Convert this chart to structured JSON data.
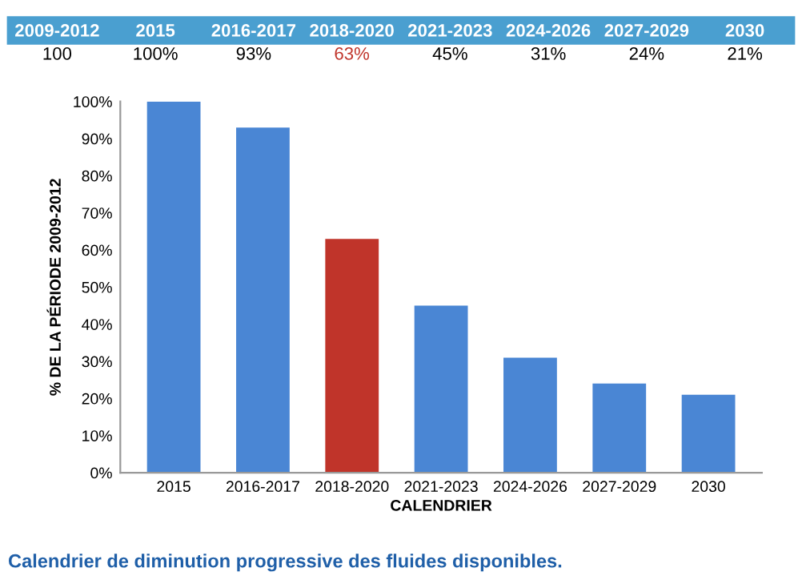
{
  "chart_data": {
    "type": "bar",
    "categories": [
      "2015",
      "2016-2017",
      "2018-2020",
      "2021-2023",
      "2024-2026",
      "2027-2029",
      "2030"
    ],
    "values": [
      100,
      93,
      63,
      45,
      31,
      24,
      21
    ],
    "value_labels": [
      "100%",
      "93%",
      "63%",
      "45%",
      "31%",
      "24%",
      "21%"
    ],
    "colors": [
      "#4a86d4",
      "#4a86d4",
      "#c0342a",
      "#4a86d4",
      "#4a86d4",
      "#4a86d4",
      "#4a86d4"
    ],
    "ylim": [
      0,
      100
    ],
    "yticks": [
      {
        "value": 0,
        "label": "0%"
      },
      {
        "value": 10,
        "label": "10%"
      },
      {
        "value": 20,
        "label": "20%"
      },
      {
        "value": 30,
        "label": "30%"
      },
      {
        "value": 40,
        "label": "40%"
      },
      {
        "value": 50,
        "label": "50%"
      },
      {
        "value": 60,
        "label": "60%"
      },
      {
        "value": 70,
        "label": "70%"
      },
      {
        "value": 80,
        "label": "80%"
      },
      {
        "value": 90,
        "label": "90%"
      },
      {
        "value": 100,
        "label": "100%"
      }
    ],
    "ylabel": "% DE LA PÉRIODE 2009-2012",
    "xlabel": "CALENDRIER",
    "annotations": [
      "2009-2012",
      "100",
      "Calendrier de diminution progressive des fluides disponibles."
    ],
    "grid": false
  }
}
